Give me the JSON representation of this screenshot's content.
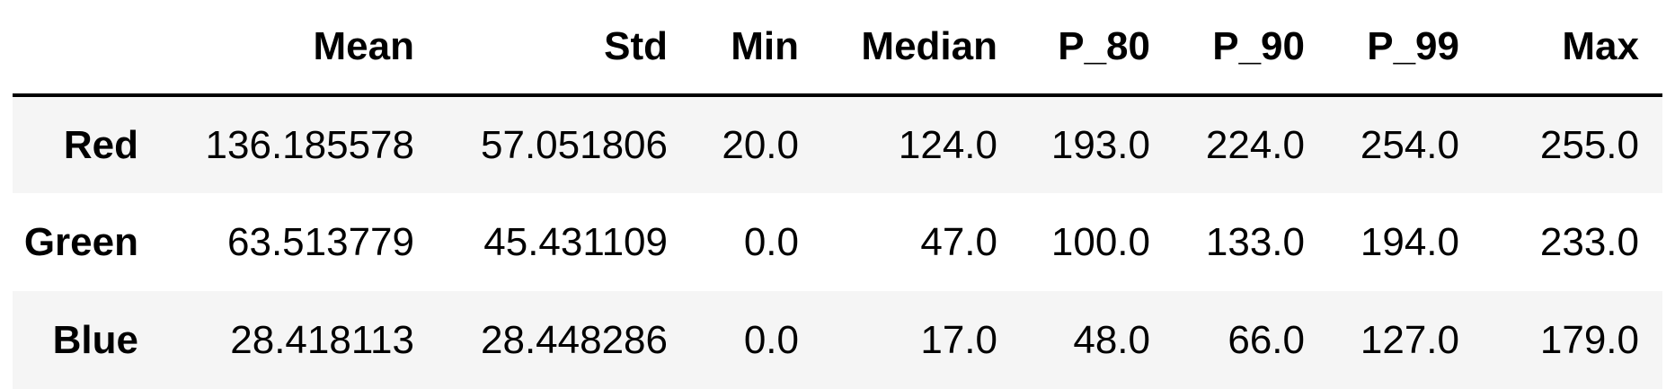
{
  "table": {
    "columns": [
      "",
      "Mean",
      "Std",
      "Min",
      "Median",
      "P_80",
      "P_90",
      "P_99",
      "Max"
    ],
    "rows": [
      {
        "label": "Red",
        "values": [
          "136.185578",
          "57.051806",
          "20.0",
          "124.0",
          "193.0",
          "224.0",
          "254.0",
          "255.0"
        ]
      },
      {
        "label": "Green",
        "values": [
          "63.513779",
          "45.431109",
          "0.0",
          "47.0",
          "100.0",
          "133.0",
          "194.0",
          "233.0"
        ]
      },
      {
        "label": "Blue",
        "values": [
          "28.418113",
          "28.448286",
          "0.0",
          "17.0",
          "48.0",
          "66.0",
          "127.0",
          "179.0"
        ]
      }
    ]
  }
}
